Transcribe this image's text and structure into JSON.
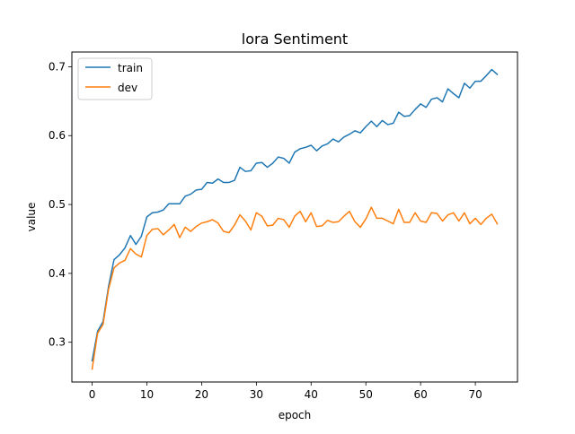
{
  "chart_data": {
    "type": "line",
    "title": "lora Sentiment",
    "xlabel": "epoch",
    "ylabel": "value",
    "xlim": [
      -3.7,
      77.7
    ],
    "ylim": [
      0.2423,
      0.7214
    ],
    "xticks": [
      0,
      10,
      20,
      30,
      40,
      50,
      60,
      70
    ],
    "xtick_labels": [
      "0",
      "10",
      "20",
      "30",
      "40",
      "50",
      "60",
      "70"
    ],
    "yticks": [
      0.3,
      0.4,
      0.5,
      0.6,
      0.7
    ],
    "ytick_labels": [
      "0.3",
      "0.4",
      "0.5",
      "0.6",
      "0.7"
    ],
    "grid": false,
    "legend_position": "upper-left",
    "x": [
      0,
      1,
      2,
      3,
      4,
      5,
      6,
      7,
      8,
      9,
      10,
      11,
      12,
      13,
      14,
      15,
      16,
      17,
      18,
      19,
      20,
      21,
      22,
      23,
      24,
      25,
      26,
      27,
      28,
      29,
      30,
      31,
      32,
      33,
      34,
      35,
      36,
      37,
      38,
      39,
      40,
      41,
      42,
      43,
      44,
      45,
      46,
      47,
      48,
      49,
      50,
      51,
      52,
      53,
      54,
      55,
      56,
      57,
      58,
      59,
      60,
      61,
      62,
      63,
      64,
      65,
      66,
      67,
      68,
      69,
      70,
      71,
      72,
      73,
      74
    ],
    "series": [
      {
        "name": "train",
        "color": "#1f77b4",
        "values": [
          0.273,
          0.316,
          0.33,
          0.381,
          0.42,
          0.427,
          0.437,
          0.455,
          0.442,
          0.454,
          0.482,
          0.488,
          0.489,
          0.492,
          0.501,
          0.501,
          0.501,
          0.512,
          0.515,
          0.521,
          0.522,
          0.532,
          0.531,
          0.537,
          0.532,
          0.532,
          0.535,
          0.554,
          0.548,
          0.549,
          0.56,
          0.561,
          0.554,
          0.56,
          0.569,
          0.567,
          0.56,
          0.576,
          0.581,
          0.583,
          0.586,
          0.578,
          0.585,
          0.588,
          0.595,
          0.591,
          0.598,
          0.602,
          0.607,
          0.604,
          0.613,
          0.621,
          0.613,
          0.622,
          0.616,
          0.618,
          0.634,
          0.628,
          0.629,
          0.638,
          0.646,
          0.641,
          0.653,
          0.655,
          0.649,
          0.668,
          0.661,
          0.655,
          0.676,
          0.669,
          0.679,
          0.679,
          0.687,
          0.696,
          0.689
        ]
      },
      {
        "name": "dev",
        "color": "#ff7f0e",
        "values": [
          0.261,
          0.313,
          0.326,
          0.377,
          0.408,
          0.415,
          0.419,
          0.436,
          0.428,
          0.424,
          0.455,
          0.464,
          0.465,
          0.456,
          0.463,
          0.471,
          0.452,
          0.467,
          0.461,
          0.468,
          0.473,
          0.475,
          0.478,
          0.473,
          0.461,
          0.459,
          0.47,
          0.485,
          0.476,
          0.463,
          0.488,
          0.483,
          0.469,
          0.47,
          0.48,
          0.478,
          0.467,
          0.483,
          0.49,
          0.475,
          0.488,
          0.468,
          0.469,
          0.477,
          0.474,
          0.475,
          0.483,
          0.49,
          0.475,
          0.467,
          0.479,
          0.496,
          0.48,
          0.48,
          0.476,
          0.472,
          0.493,
          0.474,
          0.474,
          0.488,
          0.476,
          0.474,
          0.488,
          0.487,
          0.476,
          0.485,
          0.488,
          0.476,
          0.488,
          0.472,
          0.48,
          0.471,
          0.48,
          0.486,
          0.472
        ]
      }
    ]
  }
}
